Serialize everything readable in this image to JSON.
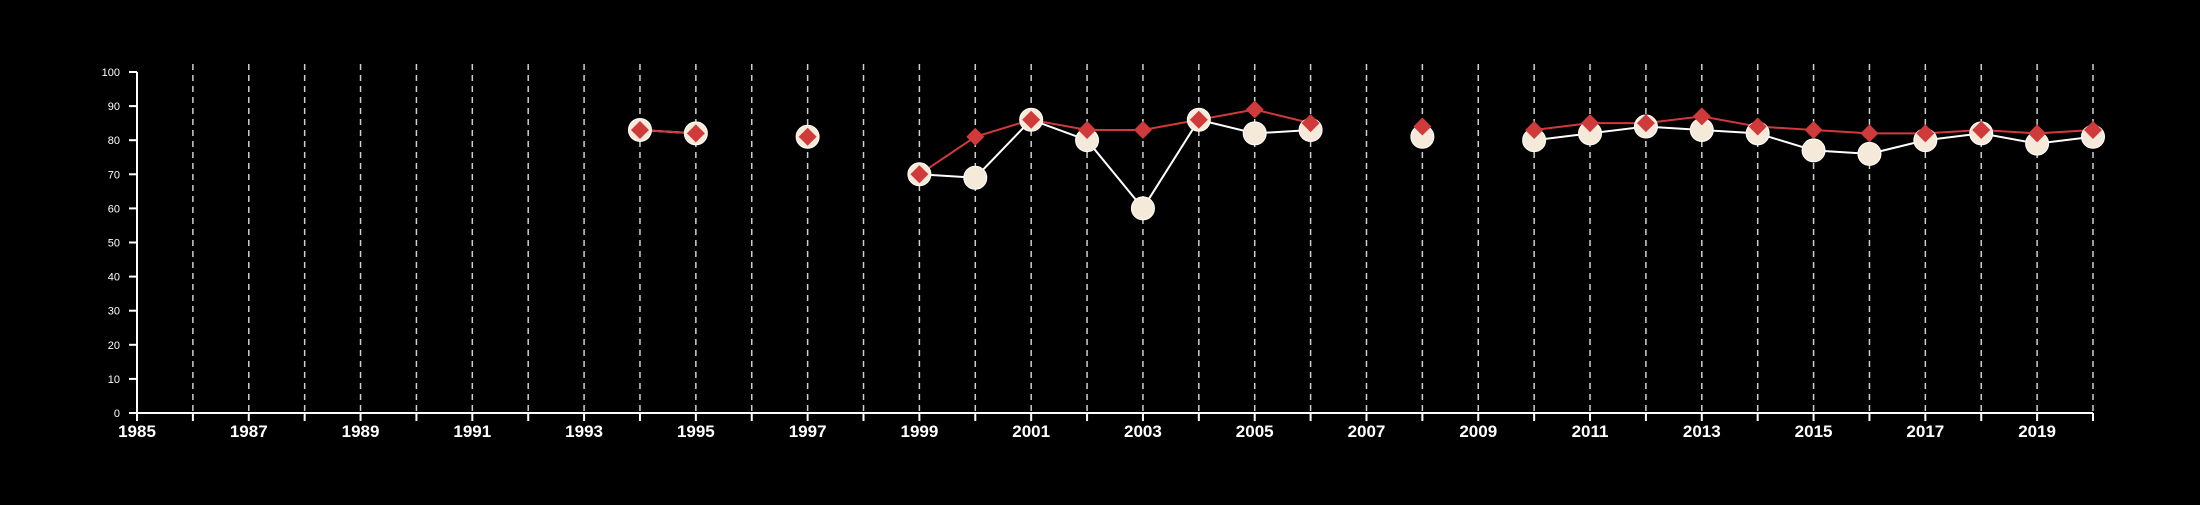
{
  "colors": {
    "background": "#000000",
    "axis": "#ffffff",
    "grid": "#cfcfcf",
    "series_a_line": "#ffffff",
    "series_a_marker": "#f5ead9",
    "series_b": "#d13a3a"
  },
  "chart_data": {
    "type": "line",
    "title": "",
    "xlabel": "",
    "ylabel": "",
    "xlim": [
      1985,
      2020
    ],
    "ylim": [
      0,
      100
    ],
    "x_ticks": [
      1985,
      1986,
      1987,
      1988,
      1989,
      1990,
      1991,
      1992,
      1993,
      1994,
      1995,
      1996,
      1997,
      1998,
      1999,
      2000,
      2001,
      2002,
      2003,
      2004,
      2005,
      2006,
      2007,
      2008,
      2009,
      2010,
      2011,
      2012,
      2013,
      2014,
      2015,
      2016,
      2017,
      2018,
      2019,
      2020
    ],
    "x_tick_labels": [
      {
        "x": 1985,
        "label": "1985"
      },
      {
        "x": 1987,
        "label": "1987"
      },
      {
        "x": 1989,
        "label": "1989"
      },
      {
        "x": 1991,
        "label": "1991"
      },
      {
        "x": 1993,
        "label": "1993"
      },
      {
        "x": 1995,
        "label": "1995"
      },
      {
        "x": 1997,
        "label": "1997"
      },
      {
        "x": 1999,
        "label": "1999"
      },
      {
        "x": 2001,
        "label": "2001"
      },
      {
        "x": 2003,
        "label": "2003"
      },
      {
        "x": 2005,
        "label": "2005"
      },
      {
        "x": 2007,
        "label": "2007"
      },
      {
        "x": 2009,
        "label": "2009"
      },
      {
        "x": 2011,
        "label": "2011"
      },
      {
        "x": 2013,
        "label": "2013"
      },
      {
        "x": 2015,
        "label": "2015"
      },
      {
        "x": 2017,
        "label": "2017"
      },
      {
        "x": 2019,
        "label": "2019"
      }
    ],
    "y_ticks": [
      {
        "y": 0,
        "label": "0"
      },
      {
        "y": 10,
        "label": "10"
      },
      {
        "y": 20,
        "label": "20"
      },
      {
        "y": 30,
        "label": "30"
      },
      {
        "y": 40,
        "label": "40"
      },
      {
        "y": 50,
        "label": "50"
      },
      {
        "y": 60,
        "label": "60"
      },
      {
        "y": 70,
        "label": "70"
      },
      {
        "y": 80,
        "label": "80"
      },
      {
        "y": 90,
        "label": "90"
      },
      {
        "y": 100,
        "label": "100"
      }
    ],
    "grid": {
      "x": true,
      "y": false,
      "style": "dashed"
    },
    "series": [
      {
        "marker": "circle",
        "points": [
          [
            1994,
            83
          ],
          [
            1995,
            82
          ],
          [
            1997,
            81
          ],
          [
            1999,
            70
          ],
          [
            2000,
            69
          ],
          [
            2001,
            86
          ],
          [
            2002,
            80
          ],
          [
            2003,
            60
          ],
          [
            2004,
            86
          ],
          [
            2005,
            82
          ],
          [
            2006,
            83
          ],
          [
            2008,
            81
          ],
          [
            2010,
            80
          ],
          [
            2011,
            82
          ],
          [
            2012,
            84
          ],
          [
            2013,
            83
          ],
          [
            2014,
            82
          ],
          [
            2015,
            77
          ],
          [
            2016,
            76
          ],
          [
            2017,
            80
          ],
          [
            2018,
            82
          ],
          [
            2019,
            79
          ],
          [
            2020,
            81
          ]
        ]
      },
      {
        "marker": "diamond",
        "points": [
          [
            1994,
            83
          ],
          [
            1995,
            82
          ],
          [
            1997,
            81
          ],
          [
            1999,
            70
          ],
          [
            2000,
            81
          ],
          [
            2001,
            86
          ],
          [
            2002,
            83
          ],
          [
            2003,
            83
          ],
          [
            2004,
            86
          ],
          [
            2005,
            89
          ],
          [
            2006,
            85
          ],
          [
            2008,
            84
          ],
          [
            2010,
            83
          ],
          [
            2011,
            85
          ],
          [
            2012,
            85
          ],
          [
            2013,
            87
          ],
          [
            2014,
            84
          ],
          [
            2015,
            83
          ],
          [
            2016,
            82
          ],
          [
            2017,
            82
          ],
          [
            2018,
            83
          ],
          [
            2019,
            82
          ],
          [
            2020,
            83
          ]
        ]
      }
    ]
  }
}
